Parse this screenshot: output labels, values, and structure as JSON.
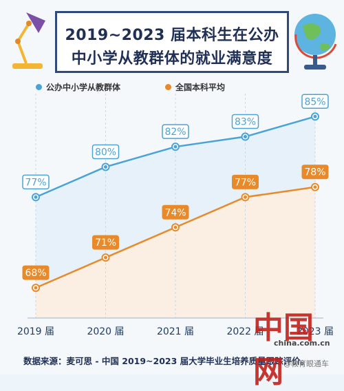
{
  "title": {
    "line1": "2019~2023 届本科生在公办",
    "line2": "中小学从教群体的就业满意度"
  },
  "legend": {
    "series1": "公办中小学从教群体",
    "series2": "全国本科平均"
  },
  "footer": {
    "source": "数据来源：麦可思 - 中国 2019~2023 届大学毕业生培养质量跟踪评价。"
  },
  "watermark": {
    "big": "中国网",
    "url": "china.com.cn",
    "tag": "@教育眼通车"
  },
  "colors": {
    "series1": "#4aa3d6",
    "series2": "#e98a2a",
    "title_border": "#2f4a7a"
  },
  "chart_data": {
    "type": "line",
    "categories": [
      "2019 届",
      "2020 届",
      "2021 届",
      "2022 届",
      "2023 届"
    ],
    "series": [
      {
        "name": "公办中小学从教群体",
        "values": [
          77,
          80,
          82,
          83,
          85
        ],
        "labels": [
          "77%",
          "80%",
          "82%",
          "83%",
          "85%"
        ]
      },
      {
        "name": "全国本科平均",
        "values": [
          68,
          71,
          74,
          77,
          78
        ],
        "labels": [
          "68%",
          "71%",
          "74%",
          "77%",
          "78%"
        ]
      }
    ],
    "ylim": [
      65,
      87
    ],
    "grid": "vertical",
    "legend_position": "top-left"
  }
}
